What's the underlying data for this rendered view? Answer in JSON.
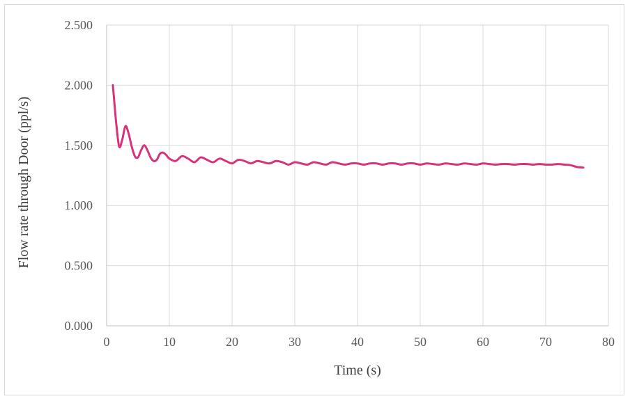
{
  "chart_data": {
    "type": "line",
    "title": "",
    "xlabel": "Time (s)",
    "ylabel": "Flow rate through Door (ppl/s)",
    "xlim": [
      0,
      80
    ],
    "ylim": [
      0,
      2.5
    ],
    "x_ticks": [
      "0",
      "10",
      "20",
      "30",
      "40",
      "50",
      "60",
      "70",
      "80"
    ],
    "y_ticks": [
      "0.000",
      "0.500",
      "1.000",
      "1.500",
      "2.000",
      "2.500"
    ],
    "grid": true,
    "legend": "none",
    "colors": {
      "series": "#d6337a",
      "grid": "#d9d9d9",
      "axis": "#bfbfbf"
    },
    "series": [
      {
        "x": [
          1,
          1.5,
          2,
          2.5,
          3,
          3.5,
          4,
          4.5,
          5,
          5.5,
          6,
          6.5,
          7,
          7.5,
          8,
          8.5,
          9,
          9.5,
          10,
          11,
          12,
          13,
          14,
          15,
          16,
          17,
          18,
          19,
          20,
          21,
          22,
          23,
          24,
          25,
          26,
          27,
          28,
          29,
          30,
          31,
          32,
          33,
          34,
          35,
          36,
          37,
          38,
          39,
          40,
          41,
          42,
          43,
          44,
          45,
          46,
          47,
          48,
          49,
          50,
          51,
          52,
          53,
          54,
          55,
          56,
          57,
          58,
          59,
          60,
          61,
          62,
          63,
          64,
          65,
          66,
          67,
          68,
          69,
          70,
          71,
          72,
          73,
          74,
          75,
          76
        ],
        "values": [
          2.0,
          1.7,
          1.49,
          1.55,
          1.66,
          1.6,
          1.49,
          1.41,
          1.4,
          1.46,
          1.5,
          1.46,
          1.4,
          1.37,
          1.38,
          1.43,
          1.44,
          1.42,
          1.39,
          1.37,
          1.41,
          1.39,
          1.36,
          1.4,
          1.38,
          1.36,
          1.39,
          1.37,
          1.35,
          1.38,
          1.37,
          1.35,
          1.37,
          1.36,
          1.35,
          1.37,
          1.36,
          1.34,
          1.36,
          1.35,
          1.34,
          1.36,
          1.35,
          1.34,
          1.36,
          1.35,
          1.34,
          1.35,
          1.35,
          1.34,
          1.35,
          1.35,
          1.34,
          1.35,
          1.35,
          1.34,
          1.35,
          1.35,
          1.34,
          1.35,
          1.345,
          1.34,
          1.35,
          1.345,
          1.34,
          1.35,
          1.345,
          1.34,
          1.35,
          1.345,
          1.34,
          1.345,
          1.345,
          1.34,
          1.345,
          1.345,
          1.34,
          1.345,
          1.34,
          1.34,
          1.345,
          1.34,
          1.335,
          1.32,
          1.315
        ]
      }
    ]
  }
}
